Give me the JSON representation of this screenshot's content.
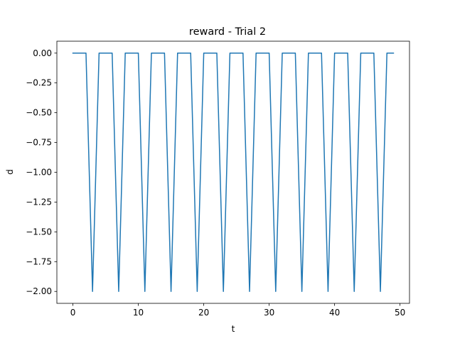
{
  "chart_data": {
    "type": "line",
    "title": "reward - Trial 2",
    "xlabel": "t",
    "ylabel": "d",
    "xlim": [
      -2.45,
      51.45
    ],
    "ylim": [
      -2.1,
      0.1
    ],
    "x_ticks": [
      0,
      10,
      20,
      30,
      40,
      50
    ],
    "x_tick_labels": [
      "0",
      "10",
      "20",
      "30",
      "40",
      "50"
    ],
    "y_ticks": [
      0.0,
      -0.25,
      -0.5,
      -0.75,
      -1.0,
      -1.25,
      -1.5,
      -1.75,
      -2.0
    ],
    "y_tick_labels": [
      "0.00",
      "−0.25",
      "−0.50",
      "−0.75",
      "−1.00",
      "−1.25",
      "−1.50",
      "−1.75",
      "−2.00"
    ],
    "grid": false,
    "series": [
      {
        "color": "#1f77b4",
        "x": [
          0,
          1,
          2,
          3,
          4,
          5,
          6,
          7,
          8,
          9,
          10,
          11,
          12,
          13,
          14,
          15,
          16,
          17,
          18,
          19,
          20,
          21,
          22,
          23,
          24,
          25,
          26,
          27,
          28,
          29,
          30,
          31,
          32,
          33,
          34,
          35,
          36,
          37,
          38,
          39,
          40,
          41,
          42,
          43,
          44,
          45,
          46,
          47,
          48,
          49
        ],
        "y": [
          0,
          0,
          0,
          -2,
          0,
          0,
          0,
          -2,
          0,
          0,
          0,
          -2,
          0,
          0,
          0,
          -2,
          0,
          0,
          0,
          -2,
          0,
          0,
          0,
          -2,
          0,
          0,
          0,
          -2,
          0,
          0,
          0,
          -2,
          0,
          0,
          0,
          -2,
          0,
          0,
          0,
          -2,
          0,
          0,
          0,
          -2,
          0,
          0,
          0,
          -2,
          0,
          0
        ]
      }
    ]
  }
}
